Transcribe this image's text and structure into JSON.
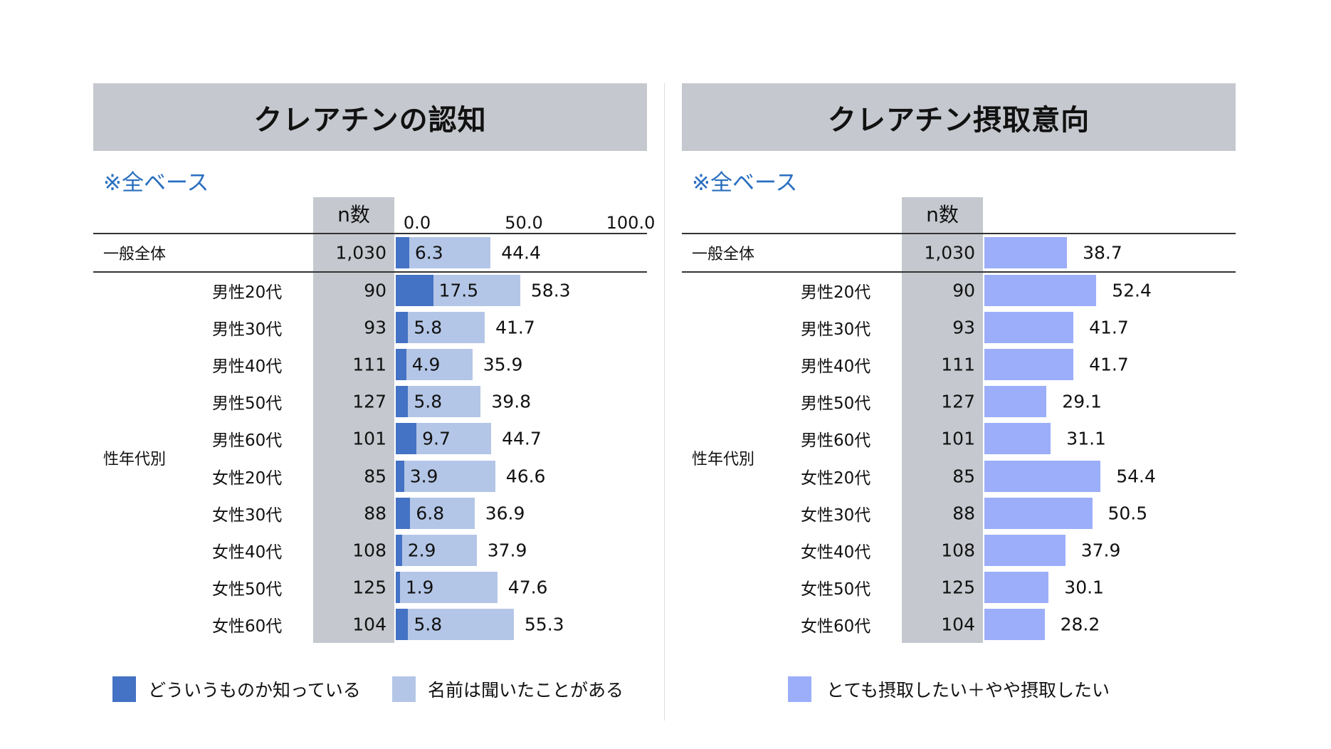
{
  "colors": {
    "known_well": "#4472c4",
    "heard_name": "#b4c6e7",
    "intent": "#9caefa",
    "header_bg": "#c5c8ce",
    "note": "#2a6fbf"
  },
  "left": {
    "title": "クレアチンの認知",
    "base_note": "※全ベース",
    "n_header": "n数",
    "axis_ticks": [
      "0.0",
      "50.0",
      "100.0"
    ],
    "total_label": "一般全体",
    "group_label": "性年代別",
    "legend": [
      "どういうものか知っている",
      "名前は聞いたことがある"
    ]
  },
  "right": {
    "title": "クレアチン摂取意向",
    "base_note": "※全ベース",
    "n_header": "n数",
    "total_label": "一般全体",
    "group_label": "性年代別",
    "legend": [
      "とても摂取したい＋やや摂取したい"
    ]
  },
  "chart_data": [
    {
      "type": "bar",
      "stacked": true,
      "orientation": "horizontal",
      "title": "クレアチンの認知",
      "xlim": [
        0,
        100
      ],
      "categories": [
        "一般全体",
        "男性20代",
        "男性30代",
        "男性40代",
        "男性50代",
        "男性60代",
        "女性20代",
        "女性30代",
        "女性40代",
        "女性50代",
        "女性60代"
      ],
      "n": [
        "1,030",
        "90",
        "93",
        "111",
        "127",
        "101",
        "85",
        "88",
        "108",
        "125",
        "104"
      ],
      "series": [
        {
          "name": "どういうものか知っている",
          "values": [
            6.3,
            17.5,
            5.8,
            4.9,
            5.8,
            9.7,
            3.9,
            6.8,
            2.9,
            1.9,
            5.8
          ]
        },
        {
          "name": "名前は聞いたことがある",
          "values": [
            44.4,
            58.3,
            41.7,
            35.9,
            39.8,
            44.7,
            46.6,
            36.9,
            37.9,
            47.6,
            55.3
          ]
        }
      ],
      "legend": "bottom"
    },
    {
      "type": "bar",
      "orientation": "horizontal",
      "title": "クレアチン摂取意向",
      "xlim": [
        0,
        100
      ],
      "categories": [
        "一般全体",
        "男性20代",
        "男性30代",
        "男性40代",
        "男性50代",
        "男性60代",
        "女性20代",
        "女性30代",
        "女性40代",
        "女性50代",
        "女性60代"
      ],
      "n": [
        "1,030",
        "90",
        "93",
        "111",
        "127",
        "101",
        "85",
        "88",
        "108",
        "125",
        "104"
      ],
      "series": [
        {
          "name": "とても摂取したい＋やや摂取したい",
          "values": [
            38.7,
            52.4,
            41.7,
            41.7,
            29.1,
            31.1,
            54.4,
            50.5,
            37.9,
            30.1,
            28.2
          ]
        }
      ],
      "legend": "bottom"
    }
  ]
}
